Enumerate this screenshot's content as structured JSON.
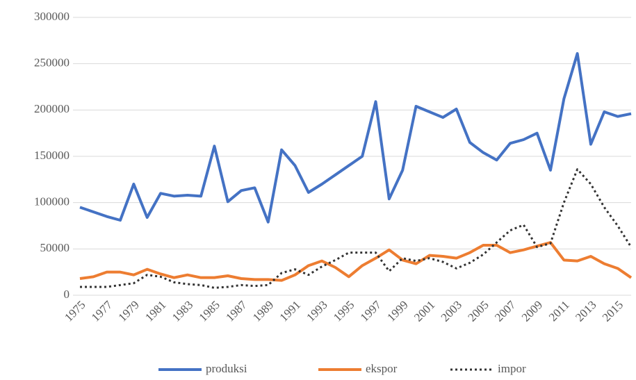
{
  "chart_data": {
    "type": "line",
    "x": [
      1975,
      1976,
      1977,
      1978,
      1979,
      1980,
      1981,
      1982,
      1983,
      1984,
      1985,
      1986,
      1987,
      1988,
      1989,
      1990,
      1991,
      1992,
      1993,
      1994,
      1995,
      1996,
      1997,
      1998,
      1999,
      2000,
      2001,
      2002,
      2003,
      2004,
      2005,
      2006,
      2007,
      2008,
      2009,
      2010,
      2011,
      2012,
      2013,
      2014,
      2015,
      2016
    ],
    "xlim": [
      1975,
      2016
    ],
    "xticks": [
      1975,
      1977,
      1979,
      1981,
      1983,
      1985,
      1987,
      1989,
      1991,
      1993,
      1995,
      1997,
      1999,
      2001,
      2003,
      2005,
      2007,
      2009,
      2011,
      2013,
      2015
    ],
    "ylim": [
      0,
      300000
    ],
    "yticks": [
      0,
      50000,
      100000,
      150000,
      200000,
      250000,
      300000
    ],
    "grid": true,
    "legend": "bottom",
    "series": [
      {
        "name": "produksi",
        "color": "#4472c4",
        "style": "solid",
        "values": [
          95000,
          90000,
          85000,
          81000,
          120000,
          84000,
          110000,
          107000,
          108000,
          107000,
          161000,
          101000,
          113000,
          116000,
          79000,
          157000,
          140000,
          111000,
          120000,
          130000,
          140000,
          150000,
          209000,
          104000,
          135000,
          204000,
          198000,
          192000,
          201000,
          165000,
          154000,
          146000,
          164000,
          168000,
          175000,
          135000,
          212000,
          261000,
          163000,
          198000,
          193000,
          196000
        ]
      },
      {
        "name": "ekspor",
        "color": "#ed7d31",
        "style": "solid",
        "values": [
          18000,
          20000,
          25000,
          25000,
          22000,
          28000,
          23000,
          19000,
          22000,
          19000,
          19000,
          21000,
          18000,
          17000,
          17000,
          16000,
          22000,
          32000,
          37000,
          30000,
          20000,
          32000,
          40000,
          49000,
          38000,
          34000,
          43000,
          42000,
          40000,
          46000,
          54000,
          54000,
          46000,
          49000,
          53000,
          57000,
          38000,
          37000,
          42000,
          34000,
          29000,
          19000
        ]
      },
      {
        "name": "impor",
        "color": "#333333",
        "style": "dotted",
        "values": [
          9000,
          9000,
          9000,
          11000,
          13000,
          22000,
          20000,
          14000,
          12000,
          11000,
          8000,
          9000,
          11000,
          10000,
          11000,
          24000,
          28000,
          22000,
          31000,
          38000,
          46000,
          46000,
          46000,
          26000,
          40000,
          37000,
          40000,
          36000,
          29000,
          35000,
          44000,
          57000,
          70000,
          76000,
          52000,
          56000,
          100000,
          136000,
          120000,
          95000,
          75000,
          52000
        ]
      }
    ]
  }
}
